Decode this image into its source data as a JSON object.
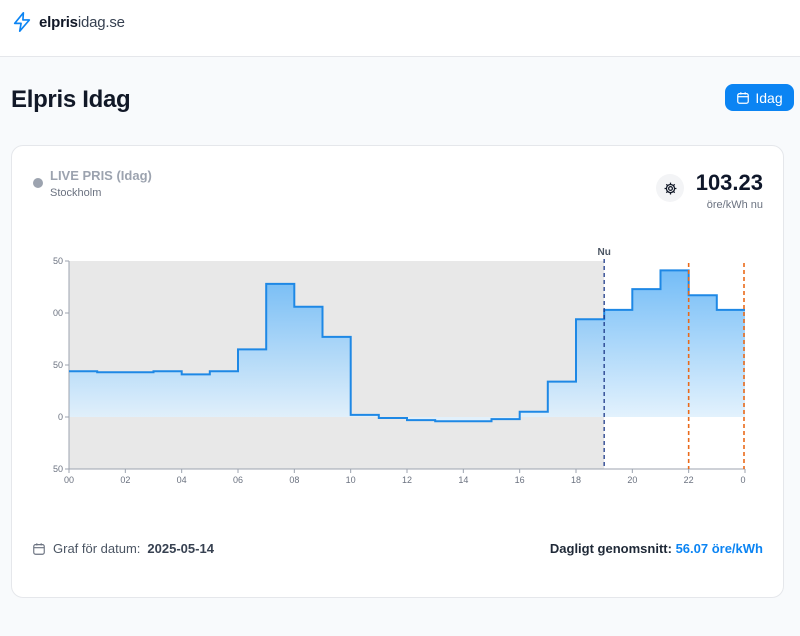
{
  "header": {
    "logo_icon": "lightning-bolt-icon",
    "brand_bold": "elpris",
    "brand_light": "idag.se"
  },
  "page": {
    "title": "Elpris Idag",
    "date_button_label": "Idag"
  },
  "card": {
    "live_label": "LIVE PRIS (Idag)",
    "region": "Stockholm",
    "current_price": "103.23",
    "current_price_unit": "öre/kWh nu",
    "settings_icon": "gear-icon"
  },
  "footer": {
    "date_label": "Graf för datum:",
    "date_value": "2025-05-14",
    "average_label": "Dagligt genomsnitt:",
    "average_value": "56.07 öre/kWh"
  },
  "chart_data": {
    "type": "area",
    "step": true,
    "x_ticks": [
      "00",
      "02",
      "04",
      "06",
      "08",
      "10",
      "12",
      "14",
      "16",
      "18",
      "20",
      "22",
      "0"
    ],
    "y_ticks": [
      "50",
      "00",
      "50",
      "0",
      "50"
    ],
    "ylim": [
      -50,
      150
    ],
    "xlim": [
      0,
      24
    ],
    "now_label": "Nu",
    "now_hour": 19,
    "reference_hours": [
      22,
      24
    ],
    "hours": [
      0,
      1,
      2,
      3,
      4,
      5,
      6,
      7,
      8,
      9,
      10,
      11,
      12,
      13,
      14,
      15,
      16,
      17,
      18,
      19,
      20,
      21,
      22,
      23
    ],
    "values": [
      44,
      43,
      43,
      44,
      41,
      44,
      65,
      128,
      106,
      77,
      2,
      -1,
      -3,
      -4,
      -4,
      -2,
      5,
      34,
      94,
      103,
      123,
      141,
      117,
      103
    ],
    "colors": {
      "line": "#1e88e5",
      "fill_top": "#64b5f6",
      "fill_bottom": "#e3f2fd",
      "past_bg": "#e8e8e8",
      "now_line": "#1e3a8a",
      "reference_line": "#ea6a1a"
    }
  }
}
